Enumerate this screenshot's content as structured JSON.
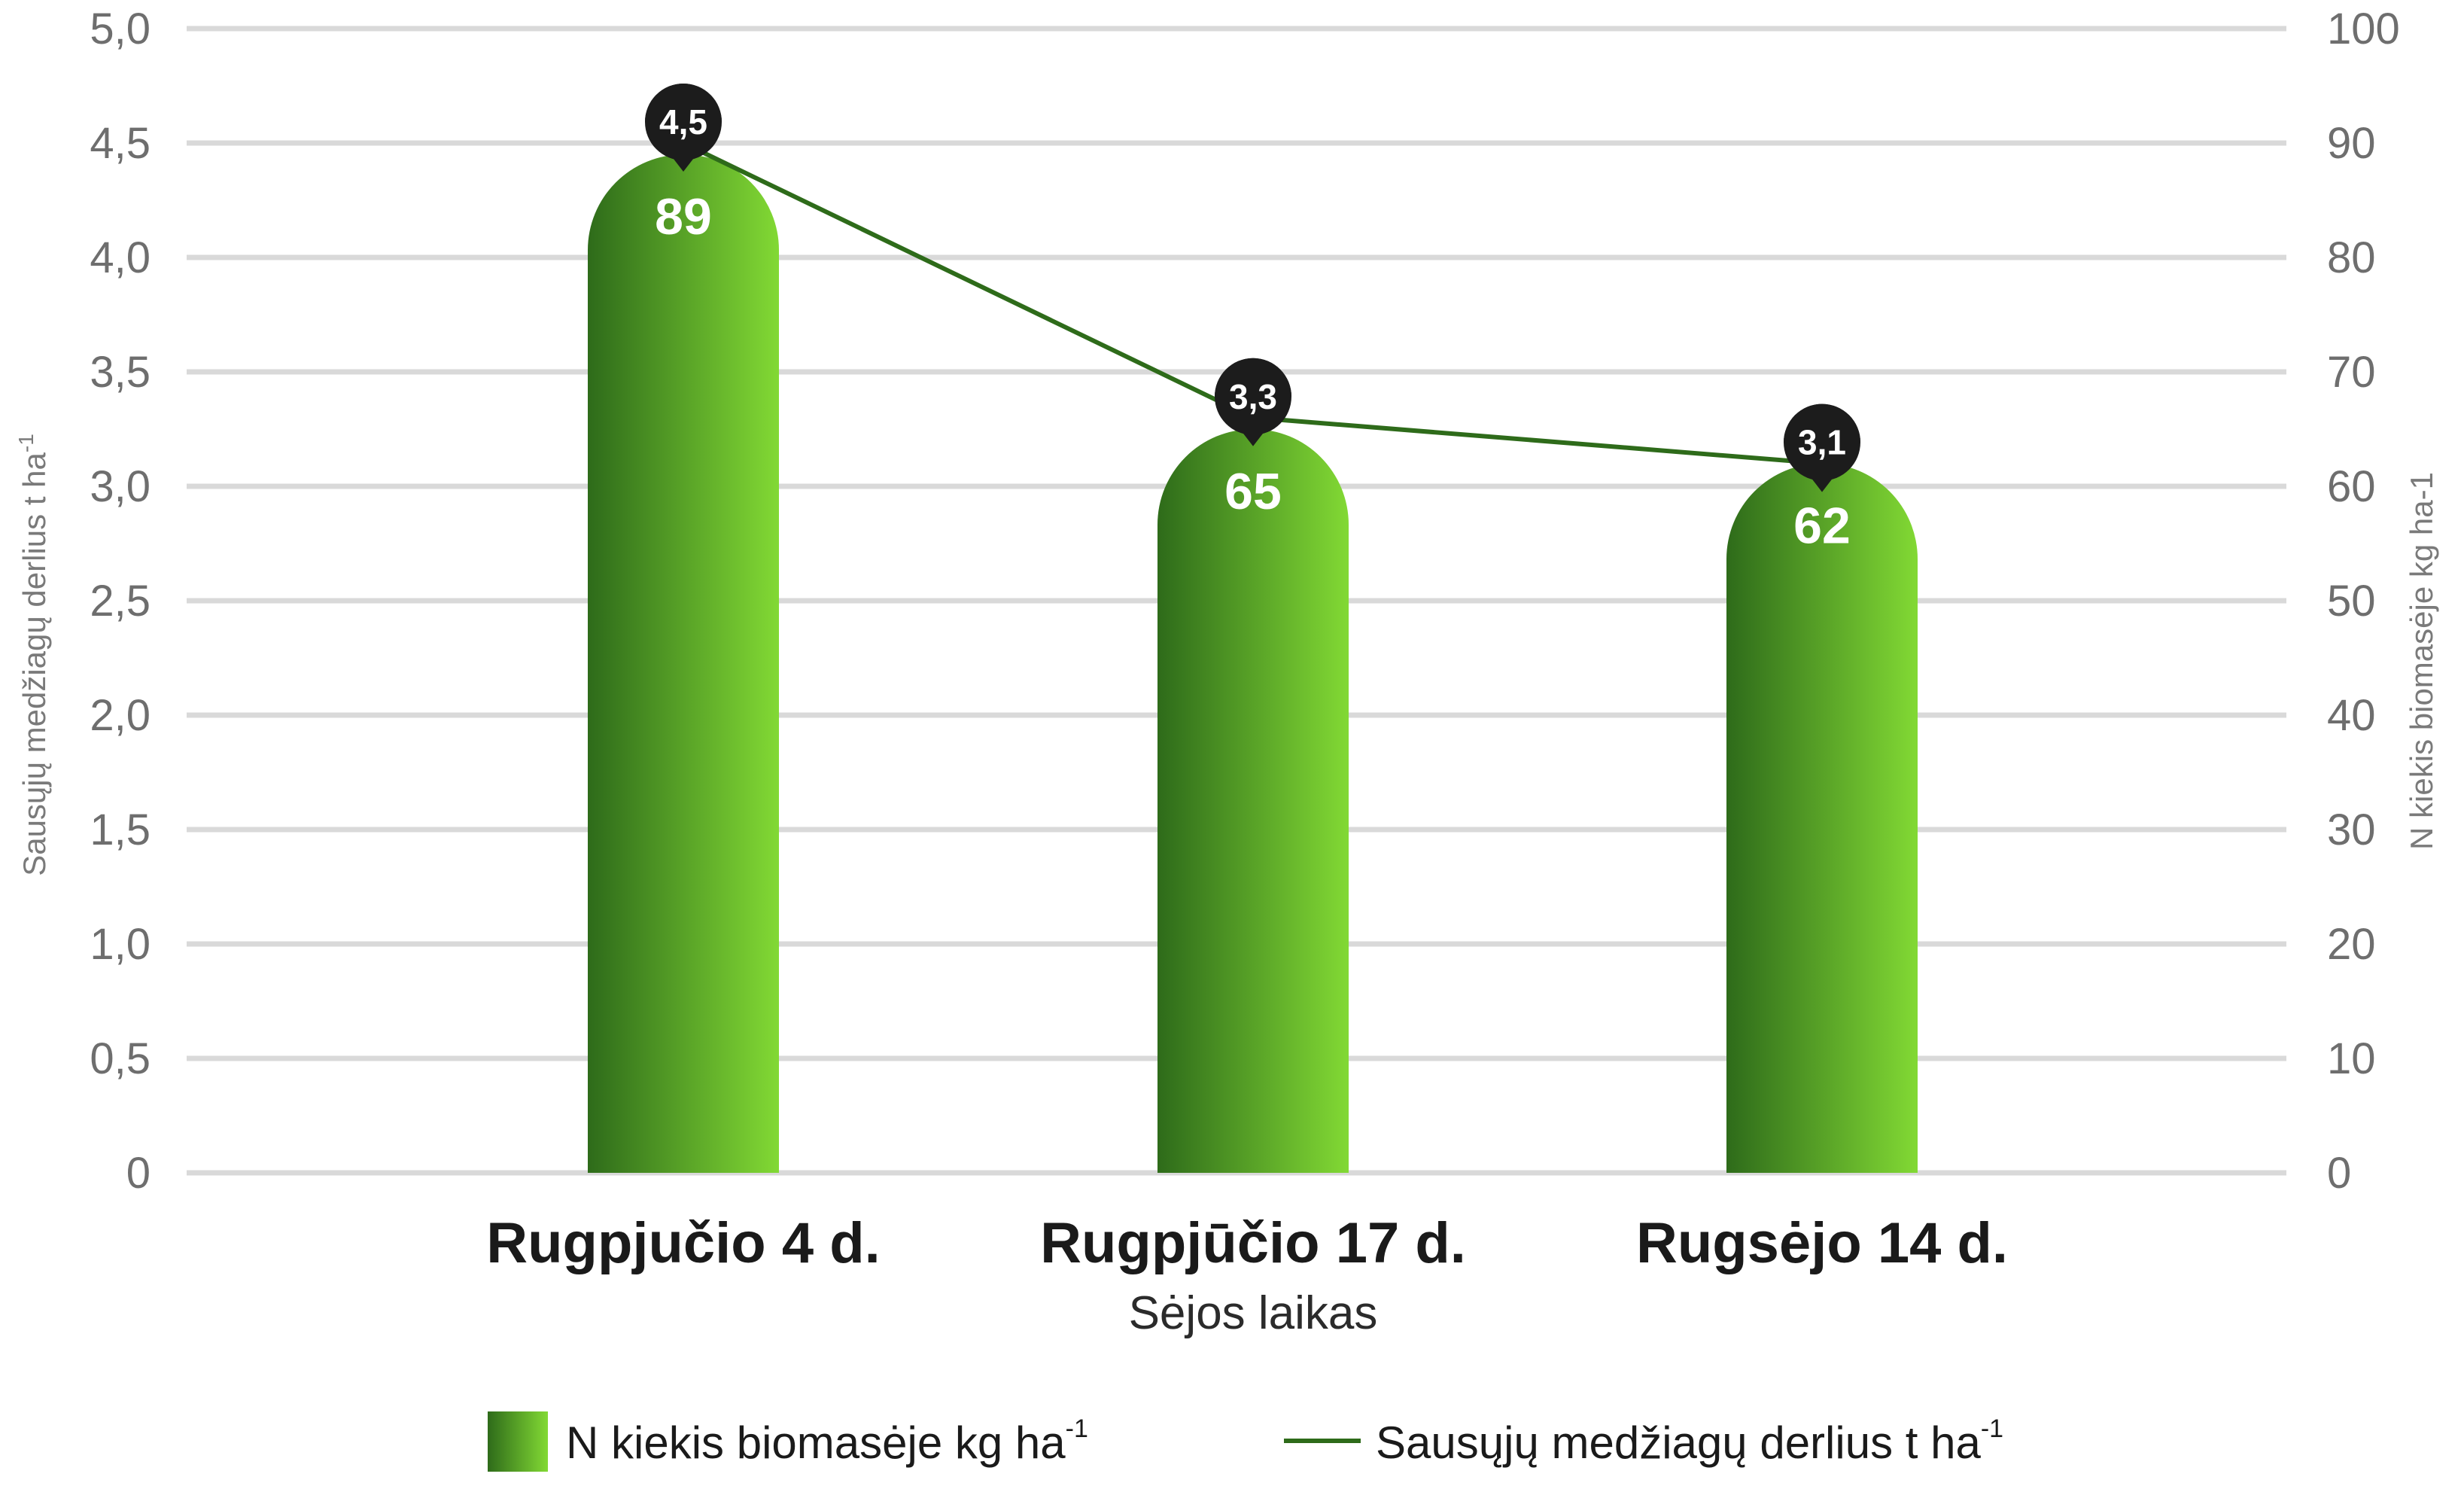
{
  "chart_data": {
    "type": "bar",
    "categories": [
      "Rugpjučio 4 d.",
      "Rugpjūčio 17 d.",
      "Rugsėjo 14 d."
    ],
    "xlabel": "Sėjos laikas",
    "series": [
      {
        "name": "N kiekis biomasėje kg ha",
        "name_superscript": "-1",
        "type": "bar",
        "axis": "right",
        "values": [
          89,
          65,
          62
        ],
        "labels": [
          "89",
          "65",
          "62"
        ],
        "color_dark": "#2e6b1a",
        "color_light": "#82d934"
      },
      {
        "name": "Sausųjų medžiagų derlius t ha",
        "name_superscript": "-1",
        "type": "line",
        "axis": "left",
        "values": [
          4.5,
          3.3,
          3.1
        ],
        "labels": [
          "4,5",
          "3,3",
          "3,1"
        ],
        "color": "#2e6b1a",
        "marker_color": "#1c1c1c"
      }
    ],
    "y_left": {
      "label": "Sausųjų medžiagų derlius t ha",
      "label_superscript": "-1",
      "lim": [
        0,
        5
      ],
      "ticks": [
        "0",
        "0,5",
        "1,0",
        "1,5",
        "2,0",
        "2,5",
        "3,0",
        "3,5",
        "4,0",
        "4,5",
        "5,0"
      ]
    },
    "y_right": {
      "label": "N kiekis biomasėje kg ha-1",
      "lim": [
        0,
        100
      ],
      "ticks": [
        "0",
        "10",
        "20",
        "30",
        "40",
        "50",
        "60",
        "70",
        "80",
        "90",
        "100"
      ]
    },
    "grid": true,
    "grid_color": "#d9d9d9",
    "legend_position": "bottom"
  }
}
